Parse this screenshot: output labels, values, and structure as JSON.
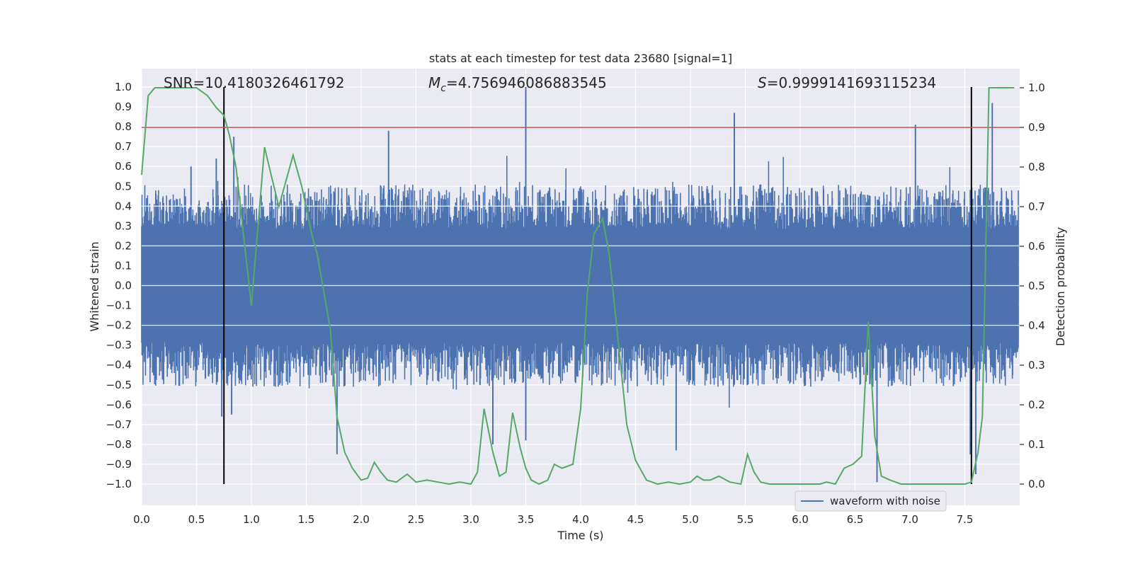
{
  "chart_data": {
    "type": "line",
    "title": "stats at each timestep for test data 23680 [signal=1]",
    "xlabel": "Time (s)",
    "ylabel": "Whitened strain",
    "y2label": "Detection probability",
    "xlim": [
      0.0,
      8.0
    ],
    "ylim": [
      -1.1,
      1.1
    ],
    "y2lim": [
      -0.05,
      1.05
    ],
    "xticks": [
      "0.0",
      "0.5",
      "1.0",
      "1.5",
      "2.0",
      "2.5",
      "3.0",
      "3.5",
      "4.0",
      "4.5",
      "5.0",
      "5.5",
      "6.0",
      "6.5",
      "7.0",
      "7.5"
    ],
    "xtick_values": [
      0.0,
      0.5,
      1.0,
      1.5,
      2.0,
      2.5,
      3.0,
      3.5,
      4.0,
      4.5,
      5.0,
      5.5,
      6.0,
      6.5,
      7.0,
      7.5
    ],
    "yticks": [
      "1.0",
      "0.9",
      "0.8",
      "0.7",
      "0.6",
      "0.5",
      "0.4",
      "0.3",
      "0.2",
      "0.1",
      "0.0",
      "−0.1",
      "−0.2",
      "−0.3",
      "−0.4",
      "−0.5",
      "−0.6",
      "−0.7",
      "−0.8",
      "−0.9",
      "−1.0"
    ],
    "ytick_values": [
      1.0,
      0.9,
      0.8,
      0.7,
      0.6,
      0.5,
      0.4,
      0.3,
      0.2,
      0.1,
      0.0,
      -0.1,
      -0.2,
      -0.3,
      -0.4,
      -0.5,
      -0.6,
      -0.7,
      -0.8,
      -0.9,
      -1.0
    ],
    "y2ticks": [
      "1.0",
      "0.9",
      "0.8",
      "0.7",
      "0.6",
      "0.5",
      "0.4",
      "0.3",
      "0.2",
      "0.1",
      "0.0"
    ],
    "y2tick_values": [
      1.0,
      0.9,
      0.8,
      0.7,
      0.6,
      0.5,
      0.4,
      0.3,
      0.2,
      0.1,
      0.0
    ],
    "annotations": {
      "snr": "SNR=10.4180326461792",
      "mc_symbol": "M",
      "mc_sub": "c",
      "mc_value": "=4.756946086883545",
      "s_symbol": "S",
      "s_value": "=0.9999141693115234"
    },
    "legend": {
      "label": "waveform with noise",
      "location": "lower-right"
    },
    "vertical_lines_x": [
      0.75,
      7.56
    ],
    "vertical_lines_yrange": [
      -1.0,
      1.0
    ],
    "threshold_y2": 0.9,
    "series": [
      {
        "name": "waveform with noise",
        "axis": "left",
        "color": "#4c72b0",
        "style": "dense-noise",
        "core_amplitude": 0.28,
        "peak_amplitude": 1.0,
        "peaks": [
          {
            "x": 0.45,
            "y": 0.6
          },
          {
            "x": 0.68,
            "y": 0.64
          },
          {
            "x": 0.84,
            "y": 0.75
          },
          {
            "x": 2.25,
            "y": 0.78
          },
          {
            "x": 3.5,
            "y": 1.0
          },
          {
            "x": 5.4,
            "y": 0.87
          },
          {
            "x": 7.05,
            "y": 0.81
          },
          {
            "x": 7.75,
            "y": 0.92
          },
          {
            "x": 1.78,
            "y": -0.85
          },
          {
            "x": 0.73,
            "y": -0.66
          },
          {
            "x": 0.82,
            "y": -0.65
          },
          {
            "x": 3.5,
            "y": -0.78
          },
          {
            "x": 4.87,
            "y": -0.83
          },
          {
            "x": 6.7,
            "y": -0.99
          },
          {
            "x": 7.55,
            "y": -0.85
          },
          {
            "x": 7.6,
            "y": -0.95
          },
          {
            "x": 3.2,
            "y": -0.8
          }
        ]
      },
      {
        "name": "detection probability",
        "axis": "right",
        "color": "#55a868",
        "x": [
          0.0,
          0.06,
          0.12,
          0.2,
          0.3,
          0.4,
          0.5,
          0.6,
          0.68,
          0.75,
          0.8,
          0.86,
          0.92,
          1.0,
          1.12,
          1.18,
          1.25,
          1.38,
          1.46,
          1.55,
          1.6,
          1.65,
          1.72,
          1.78,
          1.85,
          1.92,
          2.0,
          2.06,
          2.12,
          2.18,
          2.24,
          2.32,
          2.42,
          2.5,
          2.6,
          2.7,
          2.8,
          2.9,
          3.0,
          3.06,
          3.12,
          3.2,
          3.26,
          3.32,
          3.38,
          3.45,
          3.5,
          3.55,
          3.62,
          3.7,
          3.76,
          3.83,
          3.93,
          4.0,
          4.06,
          4.12,
          4.2,
          4.26,
          4.32,
          4.42,
          4.5,
          4.6,
          4.7,
          4.8,
          4.9,
          5.0,
          5.06,
          5.12,
          5.18,
          5.26,
          5.36,
          5.46,
          5.52,
          5.58,
          5.64,
          5.72,
          5.8,
          5.9,
          6.0,
          6.1,
          6.18,
          6.24,
          6.32,
          6.4,
          6.48,
          6.56,
          6.62,
          6.68,
          6.74,
          6.82,
          6.92,
          7.0,
          7.2,
          7.4,
          7.5,
          7.56,
          7.62,
          7.66,
          7.72,
          7.8,
          7.95
        ],
        "values": [
          0.78,
          0.98,
          1.0,
          1.0,
          1.0,
          1.0,
          1.0,
          0.98,
          0.95,
          0.93,
          0.88,
          0.8,
          0.65,
          0.45,
          0.85,
          0.78,
          0.7,
          0.83,
          0.75,
          0.63,
          0.58,
          0.5,
          0.39,
          0.17,
          0.08,
          0.04,
          0.01,
          0.015,
          0.055,
          0.03,
          0.01,
          0.005,
          0.025,
          0.005,
          0.01,
          0.005,
          0.0,
          0.005,
          0.0,
          0.03,
          0.19,
          0.08,
          0.02,
          0.03,
          0.18,
          0.09,
          0.04,
          0.01,
          0.0,
          0.01,
          0.05,
          0.04,
          0.05,
          0.19,
          0.48,
          0.63,
          0.67,
          0.58,
          0.42,
          0.15,
          0.06,
          0.01,
          0.0,
          0.005,
          0.0,
          0.005,
          0.02,
          0.01,
          0.01,
          0.02,
          0.005,
          0.0,
          0.075,
          0.03,
          0.005,
          0.0,
          0.0,
          0.0,
          0.0,
          0.0,
          0.0,
          0.005,
          0.0,
          0.04,
          0.05,
          0.07,
          0.41,
          0.12,
          0.02,
          0.01,
          0.0,
          0.0,
          0.0,
          0.0,
          0.0,
          0.005,
          0.08,
          0.17,
          1.0,
          1.0,
          1.0
        ]
      }
    ]
  }
}
